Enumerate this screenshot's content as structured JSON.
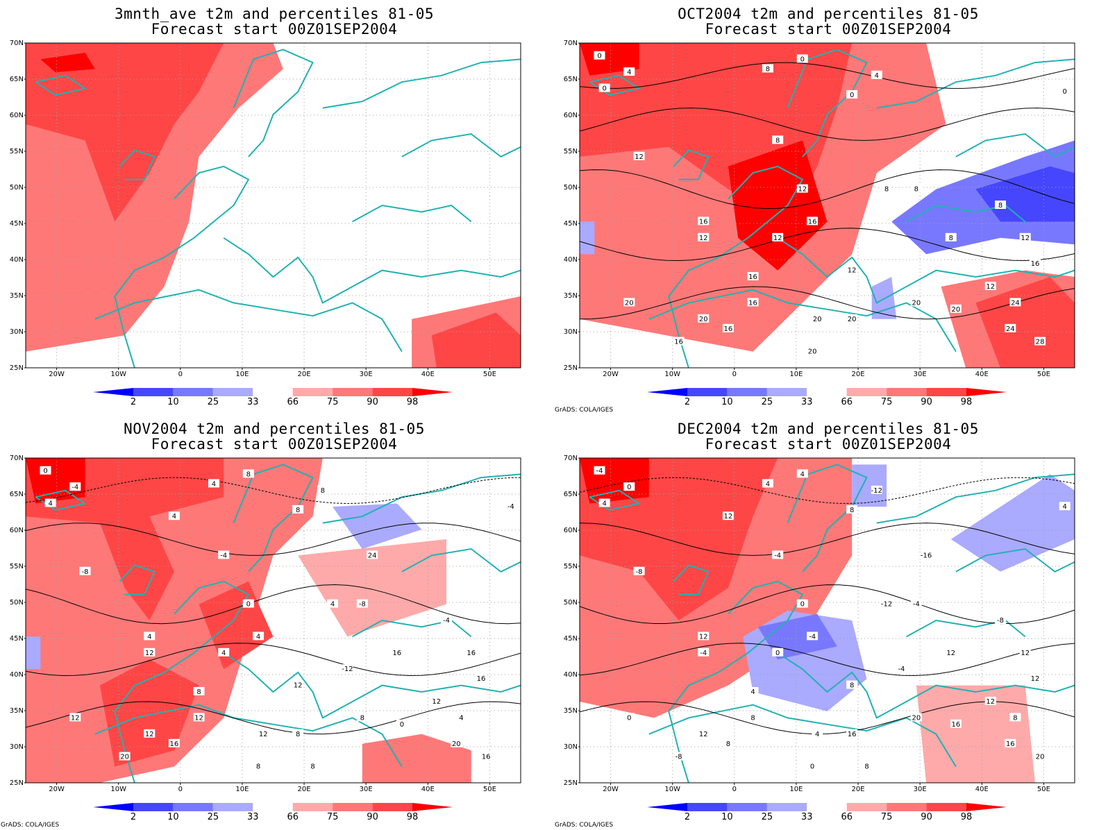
{
  "panels": [
    {
      "title_line1": "3mnth_ave t2m and percentiles 81-05",
      "title_line2": "Forecast start 00Z01SEP2004",
      "credit": "",
      "contour_labels": []
    },
    {
      "title_line1": "OCT2004 t2m and percentiles 81-05",
      "title_line2": "Forecast start 00Z01SEP2004",
      "credit": "GrADS: COLA/IGES",
      "contour_labels": [
        "0",
        "4",
        "0",
        "8",
        "0",
        "0",
        "4",
        "12",
        "8",
        "12",
        "8",
        "8",
        "8",
        "16",
        "12",
        "12",
        "16",
        "12",
        "8",
        "12",
        "16",
        "20",
        "16",
        "20",
        "16",
        "20",
        "20",
        "24",
        "20",
        "20",
        "12",
        "16",
        "24",
        "28",
        "16",
        "20",
        "0"
      ]
    },
    {
      "title_line1": "NOV2004 t2m and percentiles 81-05",
      "title_line2": "Forecast start 00Z01SEP2004",
      "credit": "GrADS: COLA/IGES",
      "contour_labels": [
        "0",
        "-4",
        "4",
        "4",
        "8",
        "8",
        "8",
        "-8",
        "-4",
        "0",
        "4",
        "-8",
        "-4",
        "4",
        "12",
        "4",
        "4",
        "12",
        "16",
        "16",
        "8",
        "12",
        "12",
        "12",
        "16",
        "12",
        "8",
        "4",
        "8",
        "0",
        "12",
        "16",
        "20",
        "16",
        "20",
        "8",
        "-4",
        "24",
        "4",
        "-12",
        "8"
      ]
    },
    {
      "title_line1": "DEC2004 t2m and percentiles 81-05",
      "title_line2": "Forecast start 00Z01SEP2004",
      "credit": "GrADS: COLA/IGES",
      "contour_labels": [
        "-4",
        "0",
        "4",
        "4",
        "4",
        "8",
        "-12",
        "-8",
        "-4",
        "0",
        "-12",
        "-4",
        "-8",
        "12",
        "-4",
        "0",
        "-4",
        "8",
        "12",
        "12",
        "4",
        "0",
        "8",
        "12",
        "8",
        "4",
        "16",
        "8",
        "20",
        "16",
        "12",
        "12",
        "16",
        "20",
        "-8",
        "0",
        "4",
        "-16",
        "12",
        "-4",
        "8"
      ]
    }
  ],
  "lat_labels": [
    "70N",
    "65N",
    "60N",
    "55N",
    "50N",
    "45N",
    "40N",
    "35N",
    "30N",
    "25N"
  ],
  "lon_labels": [
    "20W",
    "10W",
    "0",
    "10E",
    "20E",
    "30E",
    "40E",
    "50E"
  ],
  "colorbar": {
    "labels": [
      "2",
      "10",
      "25",
      "33",
      "66",
      "75",
      "90",
      "98"
    ],
    "colors": [
      "#0000ff",
      "#4646ff",
      "#7878ff",
      "#aaaaff",
      "#ffffff",
      "#ffaaaa",
      "#ff7878",
      "#ff4646",
      "#ff0000"
    ]
  },
  "map_colors": {
    "coast": "#20b2b2",
    "contour": "#000000",
    "grid": "#a0a0a0"
  }
}
